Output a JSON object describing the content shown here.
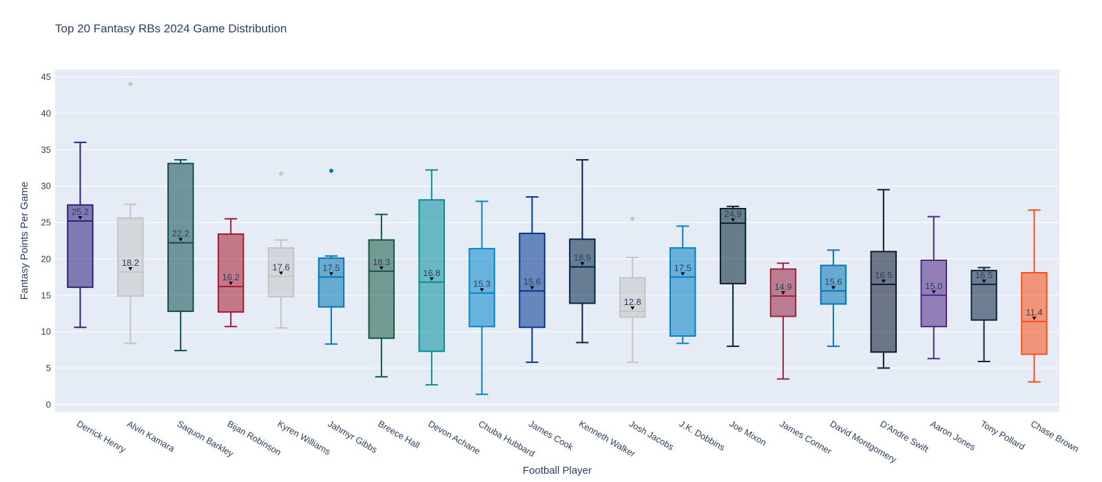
{
  "chart_data": {
    "type": "box",
    "title": "Top 20 Fantasy RBs 2024 Game Distribution",
    "xlabel": "Football Player",
    "ylabel": "Fantasy Points Per Game",
    "ylim": [
      -1,
      46
    ],
    "yticks": [
      0,
      5,
      10,
      15,
      20,
      25,
      30,
      35,
      40,
      45
    ],
    "grid": true,
    "legend": "none",
    "plot_bg": "#e5ecf6",
    "series": [
      {
        "name": "Derrick Henry",
        "color": "#2d1e7a",
        "min": 10.6,
        "q1": 16.1,
        "median": 25.2,
        "q3": 27.4,
        "max": 36.0,
        "label": "25.2",
        "outliers": []
      },
      {
        "name": "Alvin Kamara",
        "color": "#c4c4c4",
        "min": 8.4,
        "q1": 14.9,
        "median": 18.2,
        "q3": 25.6,
        "max": 27.5,
        "label": "18.2",
        "outliers": [
          44.0
        ]
      },
      {
        "name": "Saquon Barkley",
        "color": "#0e4e50",
        "min": 7.4,
        "q1": 12.8,
        "median": 22.2,
        "q3": 33.1,
        "max": 33.6,
        "label": "22.2",
        "outliers": []
      },
      {
        "name": "Bijan Robinson",
        "color": "#a6192e",
        "min": 10.7,
        "q1": 12.7,
        "median": 16.2,
        "q3": 23.4,
        "max": 25.5,
        "label": "16.2",
        "outliers": []
      },
      {
        "name": "Kyren Williams",
        "color": "#c4c4c4",
        "min": 10.5,
        "q1": 14.8,
        "median": 17.6,
        "q3": 21.5,
        "max": 22.6,
        "label": "17.6",
        "outliers": [
          31.7
        ]
      },
      {
        "name": "Jahmyr Gibbs",
        "color": "#0076b6",
        "min": 8.3,
        "q1": 13.4,
        "median": 17.5,
        "q3": 20.1,
        "max": 20.4,
        "label": "17.5",
        "outliers": [
          32.1
        ]
      },
      {
        "name": "Breece Hall",
        "color": "#125740",
        "min": 3.8,
        "q1": 9.1,
        "median": 18.3,
        "q3": 22.6,
        "max": 26.1,
        "label": "18.3",
        "outliers": []
      },
      {
        "name": "Devon Achane",
        "color": "#008e97",
        "min": 2.7,
        "q1": 7.3,
        "median": 16.8,
        "q3": 28.1,
        "max": 32.2,
        "label": "16.8",
        "outliers": []
      },
      {
        "name": "Chuba Hubbard",
        "color": "#0085ca",
        "min": 1.4,
        "q1": 10.7,
        "median": 15.3,
        "q3": 21.4,
        "max": 27.9,
        "label": "15.3",
        "outliers": []
      },
      {
        "name": "James Cook",
        "color": "#00338d",
        "min": 5.8,
        "q1": 10.6,
        "median": 15.6,
        "q3": 23.5,
        "max": 28.5,
        "label": "15.6",
        "outliers": []
      },
      {
        "name": "Kenneth Walker",
        "color": "#002244",
        "min": 8.5,
        "q1": 13.9,
        "median": 18.9,
        "q3": 22.7,
        "max": 33.6,
        "label": "18.9",
        "outliers": []
      },
      {
        "name": "Josh Jacobs",
        "color": "#c4c4c4",
        "min": 5.8,
        "q1": 12.0,
        "median": 12.8,
        "q3": 17.4,
        "max": 20.2,
        "label": "12.8",
        "outliers": [
          25.5
        ]
      },
      {
        "name": "J.K. Dobbins",
        "color": "#0080c6",
        "min": 8.4,
        "q1": 9.4,
        "median": 17.5,
        "q3": 21.5,
        "max": 24.5,
        "label": "17.5",
        "outliers": []
      },
      {
        "name": "Joe Mixon",
        "color": "#03202f",
        "min": 8.0,
        "q1": 16.6,
        "median": 24.9,
        "q3": 26.9,
        "max": 27.2,
        "label": "24.9",
        "outliers": []
      },
      {
        "name": "James Conner",
        "color": "#97233f",
        "min": 3.5,
        "q1": 12.1,
        "median": 14.9,
        "q3": 18.6,
        "max": 19.4,
        "label": "14.9",
        "outliers": []
      },
      {
        "name": "David Montgomery",
        "color": "#0076b6",
        "min": 8.0,
        "q1": 13.8,
        "median": 15.6,
        "q3": 19.1,
        "max": 21.2,
        "label": "15.6",
        "outliers": []
      },
      {
        "name": "D'Andre Swift",
        "color": "#0b162a",
        "min": 5.0,
        "q1": 7.2,
        "median": 16.5,
        "q3": 21.0,
        "max": 29.5,
        "label": "16.5",
        "outliers": []
      },
      {
        "name": "Aaron Jones",
        "color": "#4f2683",
        "min": 6.3,
        "q1": 10.7,
        "median": 15.0,
        "q3": 19.8,
        "max": 25.8,
        "label": "15.0",
        "outliers": []
      },
      {
        "name": "Tony Pollard",
        "color": "#0c2340",
        "min": 5.9,
        "q1": 11.6,
        "median": 16.5,
        "q3": 18.4,
        "max": 18.8,
        "label": "16.5",
        "outliers": []
      },
      {
        "name": "Chase Brown",
        "color": "#fb4f14",
        "min": 3.1,
        "q1": 6.9,
        "median": 11.4,
        "q3": 18.1,
        "max": 26.7,
        "label": "11.4",
        "outliers": []
      }
    ]
  }
}
